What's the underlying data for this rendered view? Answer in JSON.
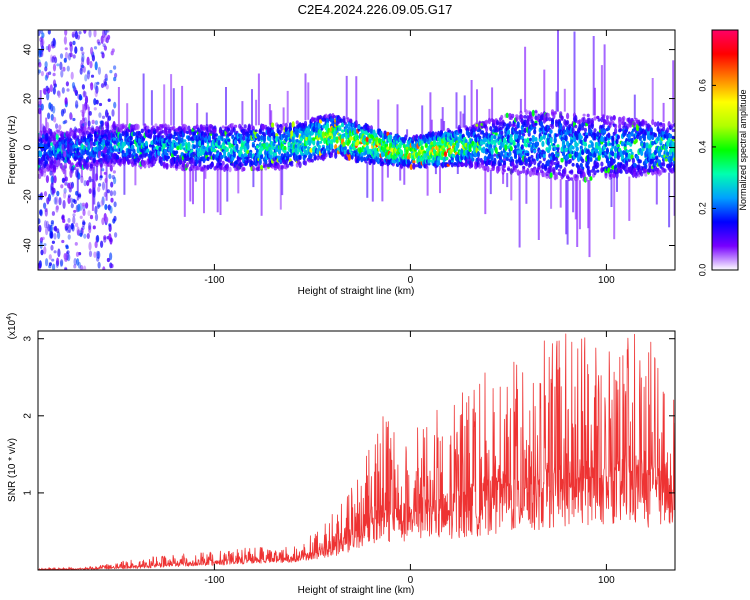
{
  "title": "C2E4.2024.226.09.05.G17",
  "chart_data": [
    {
      "type": "heatmap",
      "title": "C2E4.2024.226.09.05.G17",
      "xlabel": "Height of straight line (km)",
      "ylabel": "Frequency (Hz)",
      "xlim": [
        -190,
        135
      ],
      "ylim": [
        -50,
        48
      ],
      "x_ticks": [
        "-100",
        "0",
        "100"
      ],
      "y_ticks": [
        "-40",
        "-20",
        "0",
        "20",
        "40"
      ],
      "colorbar": {
        "label": "Normalized spectral amplitude",
        "range": [
          0.0,
          0.78
        ],
        "ticks": [
          "0.0",
          "0.2",
          "0.4",
          "0.6"
        ],
        "colors": [
          "#ffffff",
          "#7700ff",
          "#0000ff",
          "#00a0ff",
          "#00ffb0",
          "#00ff00",
          "#b0ff00",
          "#ffff00",
          "#ff8000",
          "#ff0000",
          "#ff0066"
        ]
      },
      "ridge": {
        "center_hz": [
          [
            -190,
            -2
          ],
          [
            -150,
            1
          ],
          [
            -110,
            0
          ],
          [
            -80,
            0
          ],
          [
            -60,
            1
          ],
          [
            -40,
            5
          ],
          [
            -25,
            2
          ],
          [
            0,
            -2
          ],
          [
            20,
            0
          ],
          [
            40,
            1
          ],
          [
            60,
            2
          ],
          [
            90,
            0
          ],
          [
            135,
            0
          ]
        ],
        "halfwidth_hz": [
          [
            -190,
            8
          ],
          [
            -150,
            8
          ],
          [
            -110,
            9
          ],
          [
            -60,
            9
          ],
          [
            -30,
            8
          ],
          [
            0,
            6
          ],
          [
            30,
            8
          ],
          [
            50,
            12
          ],
          [
            80,
            14
          ],
          [
            110,
            12
          ],
          [
            135,
            10
          ]
        ],
        "peak_amplitude": [
          [
            -190,
            0.25
          ],
          [
            -120,
            0.3
          ],
          [
            -60,
            0.38
          ],
          [
            -40,
            0.48
          ],
          [
            -20,
            0.55
          ],
          [
            0,
            0.5
          ],
          [
            15,
            0.58
          ],
          [
            40,
            0.3
          ],
          [
            80,
            0.3
          ],
          [
            135,
            0.35
          ]
        ]
      },
      "scatter_zone": {
        "x_range": [
          -190,
          -150
        ],
        "y_range": [
          -50,
          48
        ],
        "amplitude": 0.12
      }
    },
    {
      "type": "area",
      "xlabel": "Height of straight line (km)",
      "ylabel": "SNR (10 * v/v)",
      "y_multiplier": "(x10",
      "y_multiplier_exp": "4",
      "y_multiplier_close": ")",
      "xlim": [
        -190,
        135
      ],
      "ylim": [
        0,
        3.1
      ],
      "x_ticks": [
        "-100",
        "0",
        "100"
      ],
      "y_ticks": [
        "1",
        "2",
        "3"
      ],
      "color": "#ee3333",
      "envelope": {
        "x": [
          -190,
          -160,
          -140,
          -120,
          -100,
          -80,
          -60,
          -45,
          -35,
          -25,
          -15,
          0,
          20,
          40,
          60,
          80,
          100,
          120,
          135
        ],
        "base": [
          0.0,
          0.01,
          0.02,
          0.04,
          0.06,
          0.08,
          0.1,
          0.15,
          0.2,
          0.3,
          0.35,
          0.35,
          0.4,
          0.45,
          0.5,
          0.55,
          0.6,
          0.55,
          0.6
        ],
        "peak": [
          0.03,
          0.05,
          0.15,
          0.2,
          0.25,
          0.3,
          0.3,
          0.55,
          0.9,
          1.3,
          2.1,
          1.8,
          2.2,
          2.6,
          2.9,
          3.1,
          3.0,
          3.1,
          2.3
        ]
      }
    }
  ]
}
